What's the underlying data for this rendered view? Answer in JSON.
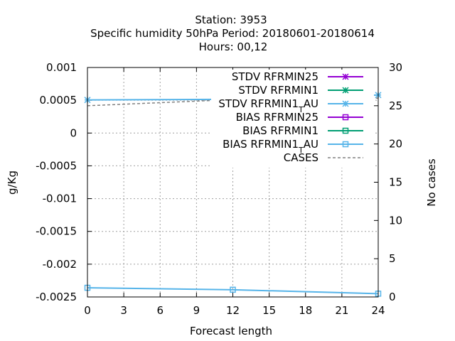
{
  "header": {
    "line1": "Station:     3953",
    "line2": "Specific humidity 50hPa   Period: 20180601-20180614",
    "line3": "Hours:  00,12"
  },
  "chart_data": {
    "type": "line",
    "xlabel": "Forecast length",
    "ylabel": "g/Kg",
    "y2label": "No cases",
    "xlim": [
      0,
      24
    ],
    "ylim": [
      -0.0025,
      0.001
    ],
    "y2lim": [
      0,
      30
    ],
    "xticks": [
      0,
      3,
      6,
      9,
      12,
      15,
      18,
      21,
      24
    ],
    "yticks": [
      "0.001",
      "0.0005",
      "0",
      "-0.0005",
      "-0.001",
      "-0.0015",
      "-0.002",
      "-0.0025"
    ],
    "y2ticks": [
      "30",
      "25",
      "20",
      "15",
      "10",
      "5",
      "0"
    ],
    "grid": true,
    "legend_position": "top-right",
    "series": [
      {
        "name": "STDV RFRMIN25",
        "color": "#9400d3",
        "marker": "star",
        "axis": "y",
        "x": [],
        "y": []
      },
      {
        "name": "STDV RFRMIN1",
        "color": "#009e73",
        "marker": "star",
        "axis": "y",
        "x": [],
        "y": []
      },
      {
        "name": "STDV RFRMIN1_T AU",
        "label_main": "STDV RFRMIN1",
        "label_sub": "T",
        "label_tail": "AU",
        "color": "#56b4e9",
        "marker": "star",
        "axis": "y",
        "x": [
          0,
          12,
          24
        ],
        "y": [
          0.000505,
          0.000515,
          0.00058
        ]
      },
      {
        "name": "BIAS RFRMIN25",
        "color": "#9400d3",
        "marker": "square",
        "axis": "y",
        "x": [],
        "y": []
      },
      {
        "name": "BIAS RFRMIN1",
        "color": "#009e73",
        "marker": "square",
        "axis": "y",
        "x": [],
        "y": []
      },
      {
        "name": "BIAS RFRMIN1_T AU",
        "label_main": "BIAS RFRMIN1",
        "label_sub": "T",
        "label_tail": "AU",
        "color": "#56b4e9",
        "marker": "square",
        "axis": "y",
        "x": [
          0,
          12,
          24
        ],
        "y": [
          -0.00236,
          -0.00239,
          -0.00245
        ]
      },
      {
        "name": "CASES",
        "color": "#808080",
        "marker": "none",
        "dashed": true,
        "axis": "y2",
        "x": [
          0,
          12,
          24
        ],
        "y": [
          25,
          25.8,
          26
        ]
      }
    ]
  }
}
